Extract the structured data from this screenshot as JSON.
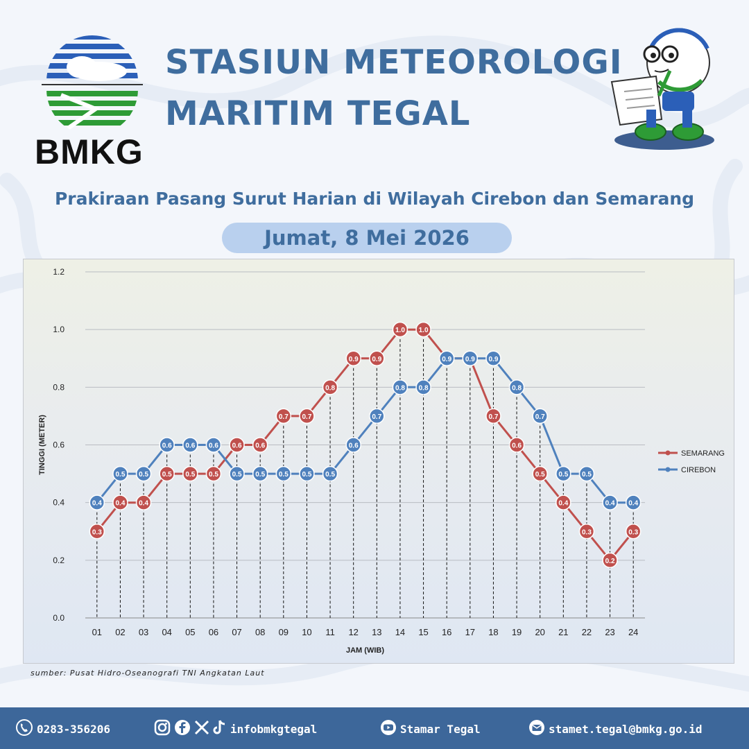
{
  "header": {
    "logo_text": "BMKG",
    "title_line1": "STASIUN METEOROLOGI",
    "title_line2": "MARITIM TEGAL",
    "subtitle": "Prakiraan Pasang Surut Harian di Wilayah Cirebon dan Semarang",
    "date": "Jumat, 8 Mei 2026"
  },
  "colors": {
    "title": "#3f6d9e",
    "semarang": "#c0504d",
    "cirebon": "#4f81bd",
    "footer_bg": "#3d679a"
  },
  "chart_data": {
    "type": "line",
    "xlabel": "JAM (WIB)",
    "ylabel": "TINGGI (METER)",
    "ylim": [
      0,
      1.2
    ],
    "yticks": [
      "0.0",
      "0.2",
      "0.4",
      "0.6",
      "0.8",
      "1.0",
      "1.2"
    ],
    "grid": true,
    "legend_position": "right",
    "categories": [
      "01",
      "02",
      "03",
      "04",
      "05",
      "06",
      "07",
      "08",
      "09",
      "10",
      "11",
      "12",
      "13",
      "14",
      "15",
      "16",
      "17",
      "18",
      "19",
      "20",
      "21",
      "22",
      "23",
      "24"
    ],
    "series": [
      {
        "name": "SEMARANG",
        "color": "#c0504d",
        "values": [
          0.3,
          0.4,
          0.4,
          0.5,
          0.5,
          0.5,
          0.6,
          0.6,
          0.7,
          0.7,
          0.8,
          0.9,
          0.9,
          1.0,
          1.0,
          0.9,
          0.9,
          0.7,
          0.6,
          0.5,
          0.4,
          0.3,
          0.2,
          0.3
        ]
      },
      {
        "name": "CIREBON",
        "color": "#4f81bd",
        "values": [
          0.4,
          0.5,
          0.5,
          0.6,
          0.6,
          0.6,
          0.5,
          0.5,
          0.5,
          0.5,
          0.5,
          0.6,
          0.7,
          0.8,
          0.8,
          0.9,
          0.9,
          0.9,
          0.8,
          0.7,
          0.5,
          0.5,
          0.4,
          0.4
        ]
      }
    ]
  },
  "source": "sumber: Pusat Hidro-Oseanografi TNI Angkatan Laut",
  "footer": {
    "phone": "0283-356206",
    "social": "infobmkgtegal",
    "youtube": "Stamar Tegal",
    "email": "stamet.tegal@bmkg.go.id"
  }
}
